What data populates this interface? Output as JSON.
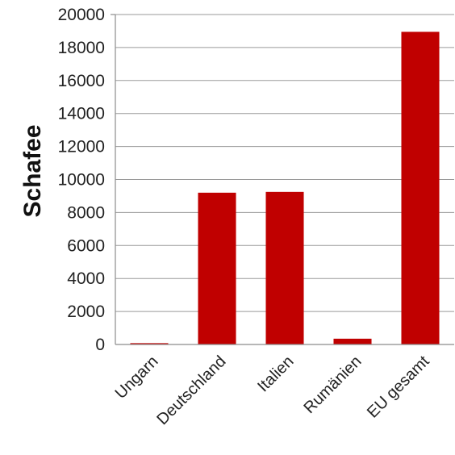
{
  "chart_data": {
    "type": "bar",
    "title": "",
    "xlabel": "",
    "ylabel": "Schafee",
    "categories": [
      "Ungarn",
      "Deutschland",
      "Italien",
      "Rumänien",
      "EU gesamt"
    ],
    "values": [
      80,
      9200,
      9250,
      350,
      18950
    ],
    "ylim": [
      0,
      20000
    ],
    "yticks": [
      0,
      2000,
      4000,
      6000,
      8000,
      10000,
      12000,
      14000,
      16000,
      18000,
      20000
    ],
    "grid": true,
    "legend": "none",
    "bar_color": "#c00000"
  }
}
